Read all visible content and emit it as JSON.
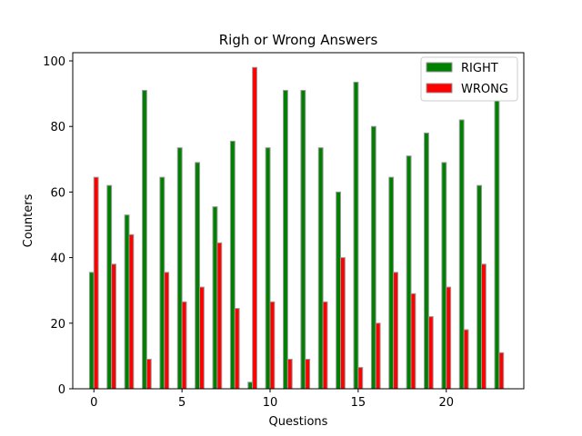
{
  "chart_data": {
    "type": "bar",
    "title": "Righ or Wrong Answers",
    "xlabel": "Questions",
    "ylabel": "Counters",
    "xlim": [
      -1.2,
      24.4
    ],
    "ylim": [
      0,
      102.5
    ],
    "xticks": [
      0,
      5,
      10,
      15,
      20
    ],
    "yticks": [
      0,
      20,
      40,
      60,
      80,
      100
    ],
    "grid": false,
    "legend": "top-right",
    "x": [
      0,
      1,
      2,
      3,
      4,
      5,
      6,
      7,
      8,
      9,
      10,
      11,
      12,
      13,
      14,
      15,
      16,
      17,
      18,
      19,
      20,
      21,
      22,
      23
    ],
    "series": [
      {
        "name": "RIGHT",
        "color": "#008000",
        "values": [
          35.5,
          62,
          53,
          91,
          64.5,
          73.5,
          69,
          55.5,
          75.5,
          2,
          73.5,
          91,
          91,
          73.5,
          60,
          93.5,
          80,
          64.5,
          71,
          78,
          69,
          82,
          62,
          88.5
        ]
      },
      {
        "name": "WRONG",
        "color": "#ff0000",
        "values": [
          64.5,
          38,
          47,
          9,
          35.5,
          26.5,
          31,
          44.5,
          24.5,
          98,
          26.5,
          9,
          9,
          26.5,
          40,
          6.5,
          20,
          35.5,
          29,
          22,
          31,
          18,
          38,
          11
        ]
      }
    ]
  }
}
